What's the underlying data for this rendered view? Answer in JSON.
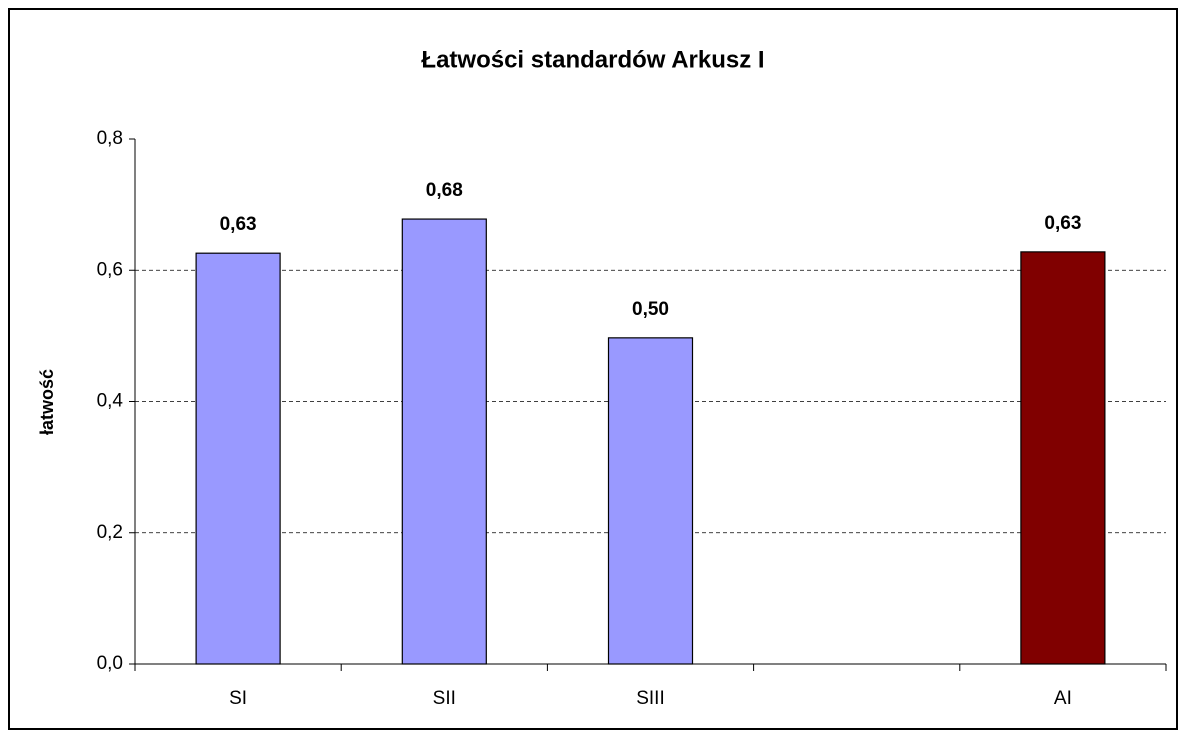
{
  "chart_data": {
    "type": "bar",
    "title": "Łatwości standardów Arkusz I",
    "y_label": "łatwość",
    "categories": [
      "SI",
      "SII",
      "SIII",
      null,
      "AI"
    ],
    "values": [
      0.626,
      0.678,
      0.497,
      null,
      0.628
    ],
    "value_labels": [
      "0,63",
      "0,68",
      "0,50",
      null,
      "0,63"
    ],
    "colors": [
      "#9999ff",
      "#9999ff",
      "#9999ff",
      null,
      "#800000"
    ],
    "ylim": [
      0,
      0.8
    ],
    "yticks": [
      {
        "value": 0,
        "label": "0,0"
      },
      {
        "value": 0.2,
        "label": "0,2"
      },
      {
        "value": 0.4,
        "label": "0,4"
      },
      {
        "value": 0.6,
        "label": "0,6"
      },
      {
        "value": 0.8,
        "label": "0,8"
      }
    ],
    "grid": true
  }
}
